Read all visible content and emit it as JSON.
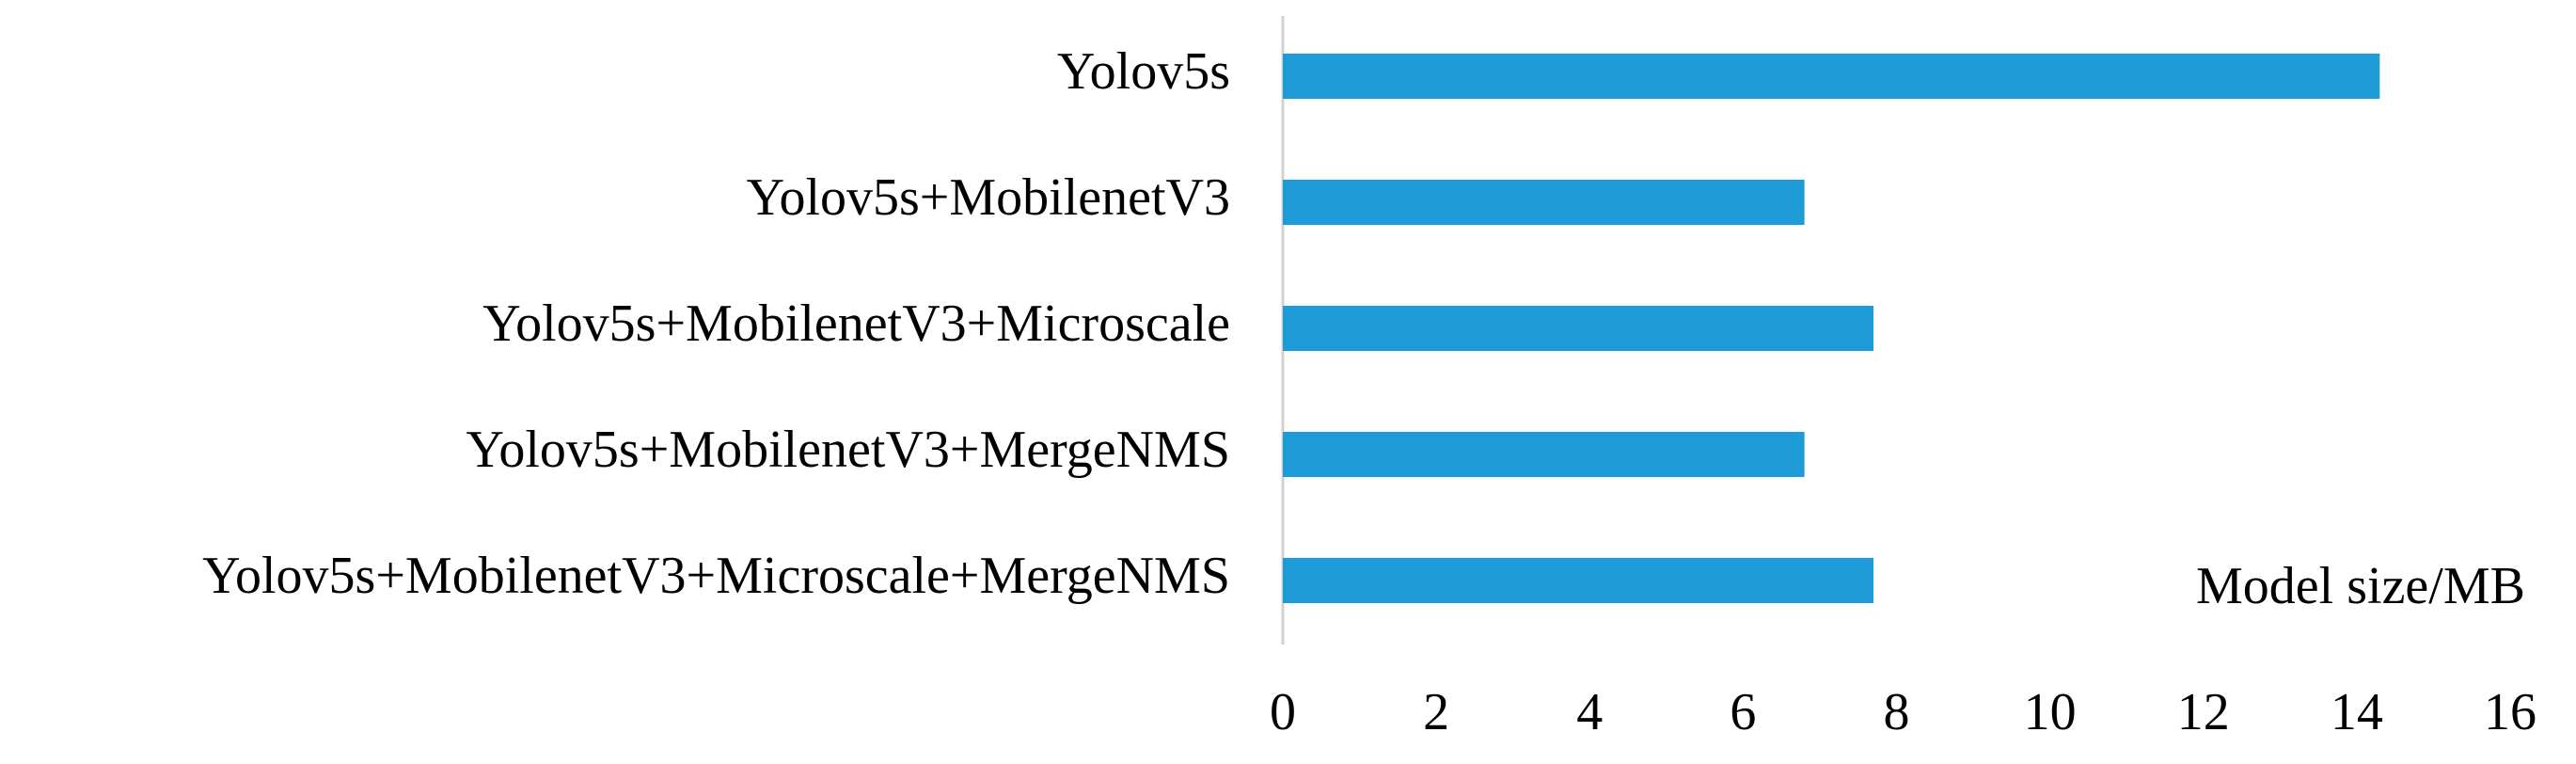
{
  "chart_data": {
    "type": "bar",
    "orientation": "horizontal",
    "x_label": "Model size/MB",
    "categories": [
      "Yolov5s",
      "Yolov5s+MobilenetV3",
      "Yolov5s+MobilenetV3+Microscale",
      "Yolov5s+MobilenetV3+MergeNMS",
      "Yolov5s+MobilenetV3+Microscale+MergeNMS"
    ],
    "values": [
      14.3,
      6.8,
      7.7,
      6.8,
      7.7
    ],
    "color": "#1f9bd7",
    "xlim": [
      0,
      16
    ],
    "xticks": [
      0,
      2,
      4,
      6,
      8,
      10,
      12,
      14,
      16
    ],
    "grid": false
  }
}
